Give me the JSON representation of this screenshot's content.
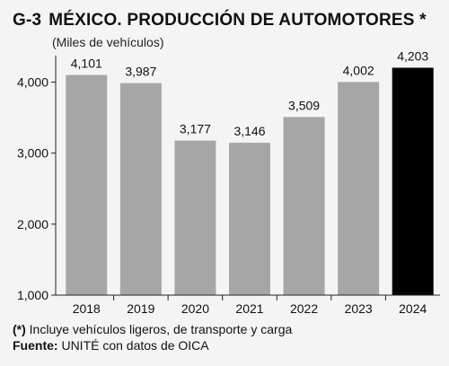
{
  "header": {
    "code": "G-3",
    "title": "MÉXICO. PRODUCCIÓN DE AUTOMOTORES *",
    "subtitle": "(Miles de vehículos)"
  },
  "footer": {
    "note_mark": "(*)",
    "note_text": " Incluye vehículos ligeros, de transporte y carga",
    "source_label": "Fuente:",
    "source_text": " UNITÉ con datos de OICA"
  },
  "colors": {
    "bar": "#a6a6a6",
    "highlight": "#000000",
    "background": "#f4f4f4",
    "text": "#111111"
  },
  "chart_data": {
    "type": "bar",
    "categories": [
      "2018",
      "2019",
      "2020",
      "2021",
      "2022",
      "2023",
      "2024"
    ],
    "values": [
      4101,
      3987,
      3177,
      3146,
      3509,
      4002,
      4203
    ],
    "value_labels": [
      "4,101",
      "3,987",
      "3,177",
      "3,146",
      "3,509",
      "4,002",
      "4,203"
    ],
    "highlight_index": 6,
    "ylim": [
      1000,
      4500
    ],
    "yticks": [
      1000,
      2000,
      3000,
      4000
    ],
    "ytick_labels": [
      "1,000",
      "2,000",
      "3,000",
      "4,000"
    ],
    "grid": false,
    "legend": "none"
  }
}
